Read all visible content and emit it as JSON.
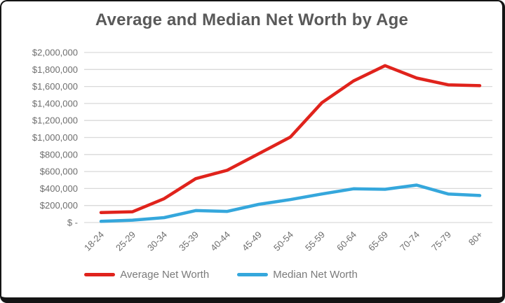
{
  "title": "Average and Median Net Worth by Age",
  "chart_data": {
    "type": "line",
    "title": "Average and Median Net Worth by Age",
    "xlabel": "",
    "ylabel": "",
    "categories": [
      "18-24",
      "25-29",
      "30-34",
      "35-39",
      "40-44",
      "45-49",
      "50-54",
      "55-59",
      "60-64",
      "65-69",
      "70-74",
      "75-79",
      "80+"
    ],
    "series": [
      {
        "name": "Average Net Worth",
        "color": "#e0231c",
        "values": [
          118000,
          127000,
          281000,
          516000,
          615000,
          810000,
          1005000,
          1410000,
          1665000,
          1845000,
          1700000,
          1620000,
          1610000
        ]
      },
      {
        "name": "Median Net Worth",
        "color": "#35a7dc",
        "values": [
          14000,
          28000,
          58000,
          141000,
          131000,
          214000,
          270000,
          336000,
          397000,
          391000,
          440000,
          336000,
          318000
        ]
      }
    ],
    "y_axis": {
      "min": 0,
      "max": 2000000,
      "step": 200000,
      "tick_labels": [
        "$ -",
        "$200,000",
        "$400,000",
        "$600,000",
        "$800,000",
        "$1,000,000",
        "$1,200,000",
        "$1,400,000",
        "$1,600,000",
        "$1,800,000",
        "$2,000,000"
      ]
    },
    "grid": true,
    "legend_position": "bottom",
    "x_tick_rotation_deg": 45
  },
  "colors": {
    "grid": "#d9d9d9",
    "axis_text": "#6e6e6e",
    "title_text": "#595959",
    "legend_text": "#7a7a7a",
    "frame": "#141414",
    "background": "#ffffff"
  }
}
